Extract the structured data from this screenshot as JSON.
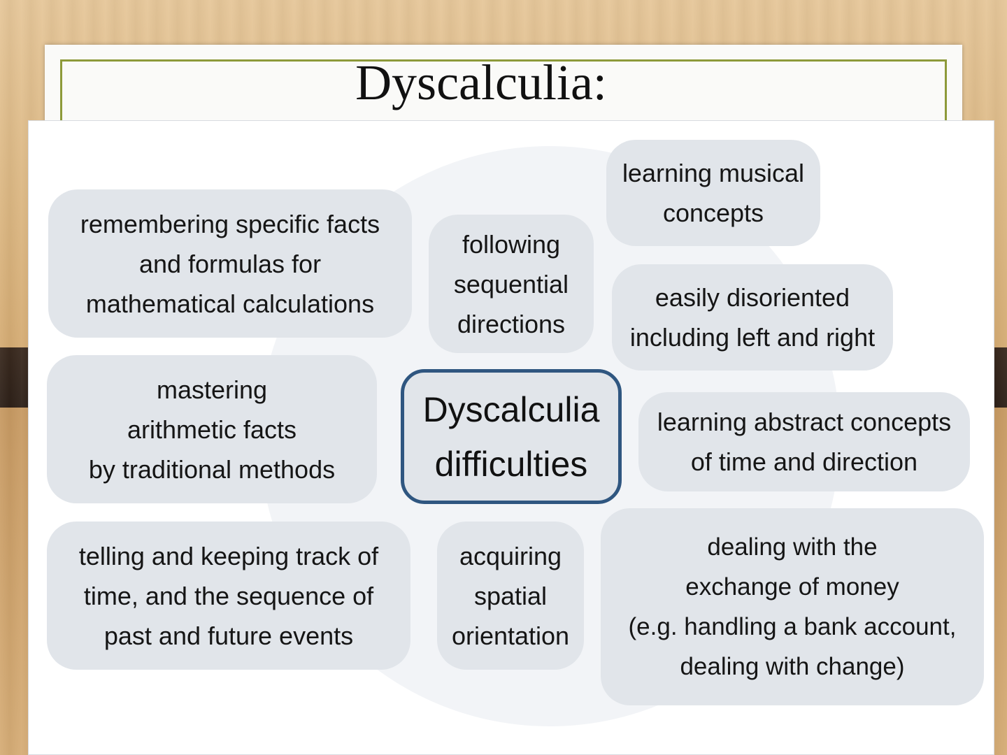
{
  "slide": {
    "title": "Dyscalculia:"
  },
  "diagram": {
    "center_label": "Dyscalculia\ndifficulties",
    "items": [
      "remembering specific facts\nand formulas for\nmathematical calculations",
      "following\nsequential\ndirections",
      "learning musical\nconcepts",
      "easily disoriented\nincluding left and right",
      "mastering\narithmetic facts\nby traditional methods",
      "learning abstract concepts\nof time and direction",
      "telling and keeping track of\ntime, and the sequence of\npast and future events",
      "acquiring\nspatial\norientation",
      "dealing with the\nexchange of money\n(e.g. handling a bank account,\ndealing with  change)"
    ]
  },
  "colors": {
    "bubble_fill": "#e1e5ea",
    "center_border": "#2f5680",
    "title_frame": "#8d9a3a"
  }
}
